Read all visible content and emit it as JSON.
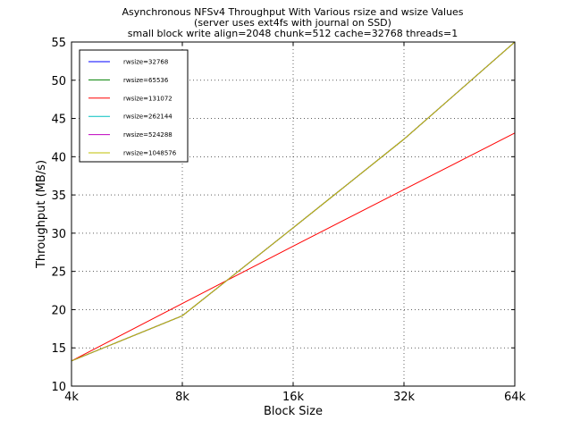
{
  "chart_data": {
    "type": "line",
    "title": [
      "Asynchronous NFSv4 Throughput With Various rsize and wsize Values",
      "(server uses ext4fs with journal on SSD)",
      "small block write align=2048 chunk=512 cache=32768 threads=1"
    ],
    "xlabel": "Block Size",
    "ylabel": "Throughput (MB/s)",
    "x_scale": "log2",
    "categories": [
      "4k",
      "8k",
      "16k",
      "32k",
      "64k"
    ],
    "ylim": [
      10,
      55
    ],
    "yticks": [
      10,
      15,
      20,
      25,
      30,
      35,
      40,
      45,
      50,
      55
    ],
    "grid": true,
    "legend_position": "top-left",
    "series": [
      {
        "name": "rwsize=32768",
        "color": "#0000ff",
        "values": [
          13.3,
          19.2,
          30.7,
          42.3,
          55.0
        ]
      },
      {
        "name": "rwsize=65536",
        "color": "#008000",
        "values": [
          13.3,
          19.2,
          30.7,
          42.3,
          55.0
        ]
      },
      {
        "name": "rwsize=131072",
        "color": "#ff0000",
        "values": [
          13.3,
          20.8,
          28.3,
          35.7,
          43.1
        ]
      },
      {
        "name": "rwsize=262144",
        "color": "#00bfbf",
        "values": [
          13.3,
          19.2,
          30.7,
          42.3,
          55.0
        ]
      },
      {
        "name": "rwsize=524288",
        "color": "#bf00bf",
        "values": [
          13.3,
          19.2,
          30.7,
          42.3,
          55.0
        ]
      },
      {
        "name": "rwsize=1048576",
        "color": "#bfbf00",
        "values": [
          13.3,
          19.2,
          30.7,
          42.3,
          55.0
        ]
      }
    ]
  }
}
